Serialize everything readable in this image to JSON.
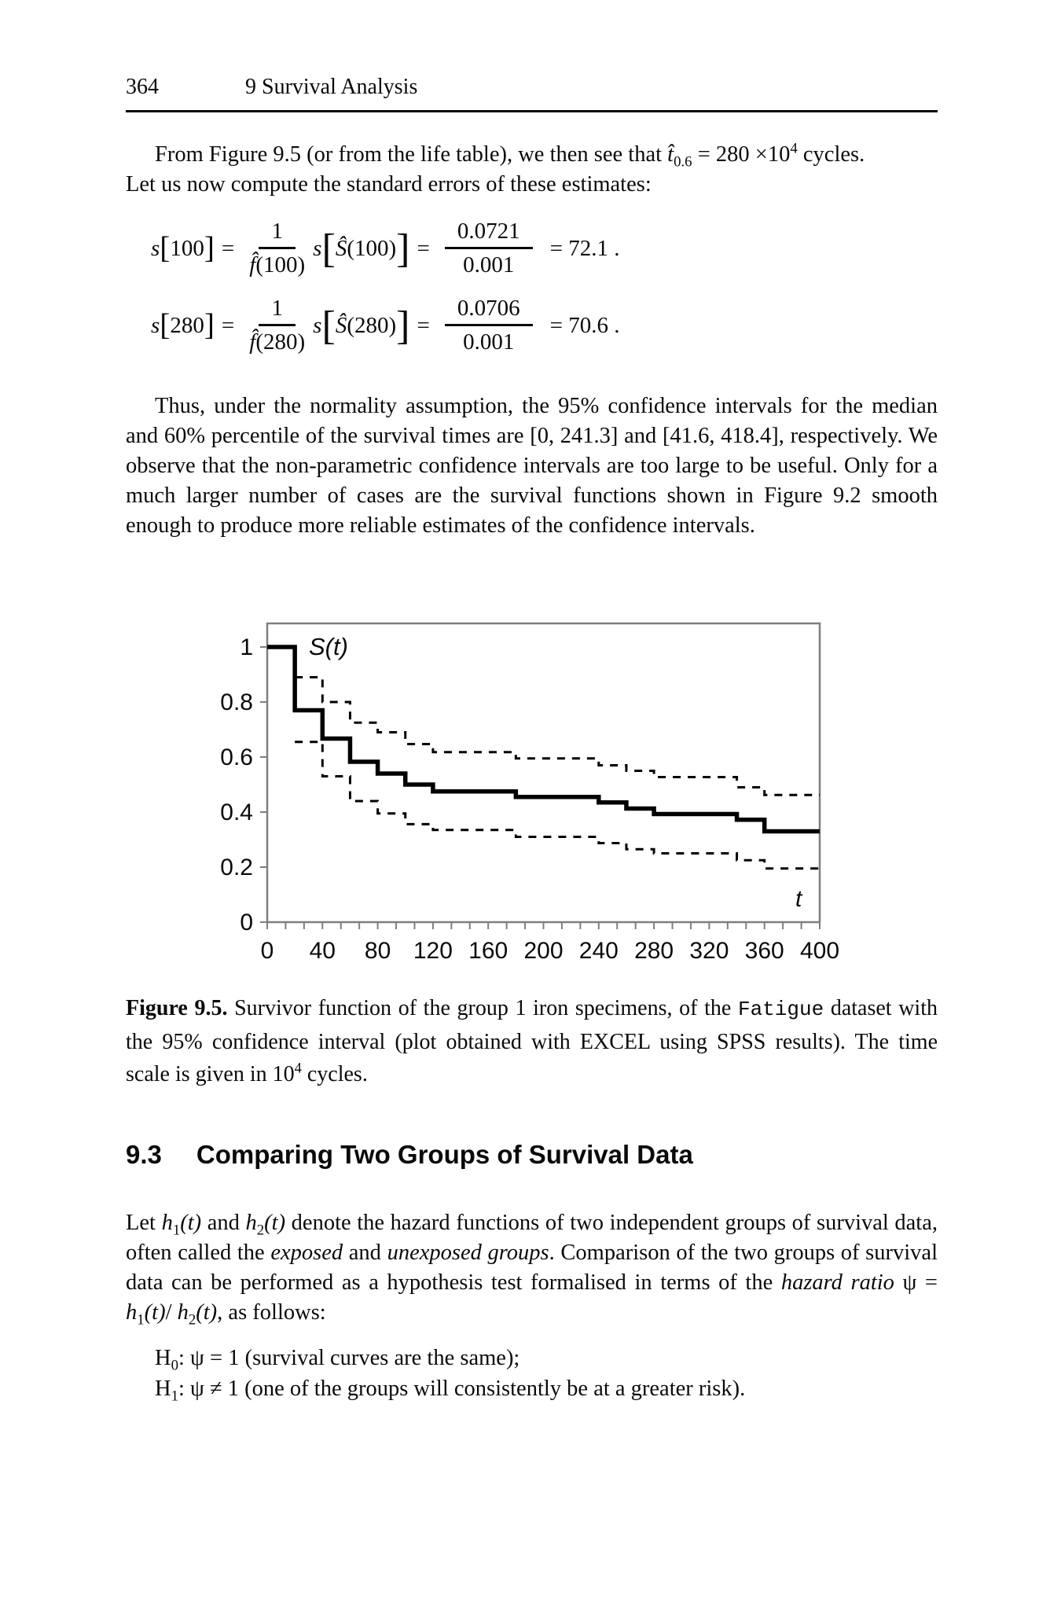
{
  "page_header": {
    "page_number": "364",
    "chapter": "9 Survival Analysis"
  },
  "intro": {
    "line1_pre": "From Figure 9.5 (or from the life table), we then see that ",
    "t_hat": "t̂",
    "t_sub": "0.6",
    "line1_mid": " = 280 ",
    "times": "×10",
    "exp": "4",
    "line1_post": " cycles.",
    "line2": "Let us now compute the standard errors of these estimates:"
  },
  "equations": [
    {
      "s1": "s",
      "open1": "[",
      "arg1": "100",
      "close1": "]",
      "eq1": "=",
      "num1": "1",
      "den_f": "f̂",
      "den_arg": "(100)",
      "s2": "s",
      "open2": "[",
      "Shat": "Ŝ",
      "argS": "(100)",
      "close2": "]",
      "eq2": "=",
      "num2": "0.0721",
      "den2": "0.001",
      "res": "= 72.1 ."
    },
    {
      "s1": "s",
      "open1": "[",
      "arg1": "280",
      "close1": "]",
      "eq1": "=",
      "num1": "1",
      "den_f": "f̂",
      "den_arg": "(280)",
      "s2": "s",
      "open2": "[",
      "Shat": "Ŝ",
      "argS": "(280)",
      "close2": "]",
      "eq2": "=",
      "num2": "0.0706",
      "den2": "0.001",
      "res": "= 70.6 ."
    }
  ],
  "body_para": "Thus, under the normality assumption, the 95% confidence intervals for the median and 60% percentile of the survival times are [0, 241.3] and [41.6, 418.4], respectively. We observe that the non-parametric confidence intervals are too large to be useful. Only for a much larger number of cases are the survival functions shown in Figure 9.2 smooth enough to produce more reliable estimates of the confidence intervals.",
  "chart_data": {
    "type": "line",
    "subtype": "step-survival-curve",
    "inner_label": "S(t)",
    "x_axis_label": "t",
    "xlim": [
      0,
      400
    ],
    "ylim": [
      0,
      1
    ],
    "x_ticks": [
      0,
      40,
      80,
      120,
      160,
      200,
      240,
      280,
      320,
      360,
      400
    ],
    "y_ticks": [
      0,
      0.2,
      0.4,
      0.6,
      0.8,
      1
    ],
    "y_tick_labels": [
      "0",
      "0.2",
      "0.4",
      "0.6",
      "0.8",
      "1"
    ],
    "grid": false,
    "legend": "none",
    "frame_color": "#7f7f7f",
    "line_color": "#000000",
    "series": [
      {
        "name": "survivor-function",
        "style": "solid-step",
        "points": [
          [
            0,
            1
          ],
          [
            20,
            0.77
          ],
          [
            40,
            0.667
          ],
          [
            60,
            0.583
          ],
          [
            80,
            0.54
          ],
          [
            100,
            0.5
          ],
          [
            120,
            0.475
          ],
          [
            180,
            0.455
          ],
          [
            240,
            0.435
          ],
          [
            260,
            0.413
          ],
          [
            280,
            0.393
          ],
          [
            340,
            0.372
          ],
          [
            360,
            0.33
          ],
          [
            400,
            0.33
          ]
        ]
      },
      {
        "name": "upper-95pct-ci",
        "style": "dashed-step",
        "points": [
          [
            20,
            0.89
          ],
          [
            40,
            0.8
          ],
          [
            60,
            0.725
          ],
          [
            80,
            0.69
          ],
          [
            100,
            0.647
          ],
          [
            120,
            0.618
          ],
          [
            180,
            0.595
          ],
          [
            240,
            0.57
          ],
          [
            260,
            0.55
          ],
          [
            280,
            0.527
          ],
          [
            340,
            0.49
          ],
          [
            360,
            0.462
          ],
          [
            400,
            0.462
          ]
        ]
      },
      {
        "name": "lower-95pct-ci",
        "style": "dashed-step",
        "points": [
          [
            20,
            0.655
          ],
          [
            40,
            0.53
          ],
          [
            60,
            0.44
          ],
          [
            80,
            0.395
          ],
          [
            100,
            0.356
          ],
          [
            120,
            0.335
          ],
          [
            180,
            0.31
          ],
          [
            240,
            0.287
          ],
          [
            260,
            0.265
          ],
          [
            280,
            0.25
          ],
          [
            340,
            0.225
          ],
          [
            360,
            0.195
          ],
          [
            400,
            0.195
          ]
        ]
      }
    ]
  },
  "caption": {
    "label": "Figure 9.5.",
    "seg1": " Survivor function of the group 1 iron specimens, of the ",
    "dataset_name": "Fatigue",
    "seg2": " dataset with the 95% confidence interval (plot obtained with EXCEL using SPSS results). The time scale is given in 10",
    "sup": "4",
    "seg3": " cycles."
  },
  "section": {
    "number": "9.3",
    "title": "Comparing Two Groups of Survival Data"
  },
  "compare": {
    "s1": "Let ",
    "h": "h",
    "sub1": "1",
    "sub2": "2",
    "arg": "(t)",
    "s2": " and ",
    "s3": " denote the hazard functions of two independent groups of survival data, often called the ",
    "exposed": "exposed",
    "s4": " and ",
    "unexposed": "unexposed groups",
    "s5": ". Comparison of the two groups of survival data can be performed as a hypothesis test formalised in terms of the ",
    "hazard_ratio": "hazard ratio",
    "s6": " ψ = ",
    "slash": "/ ",
    "s7": ", as follows:"
  },
  "hypotheses": [
    {
      "label": "H",
      "sub": "0",
      "text": ": ψ = 1 (survival curves are the same);"
    },
    {
      "label": "H",
      "sub": "1",
      "text": ": ψ ≠ 1 (one of the groups will consistently be at a greater risk)."
    }
  ]
}
